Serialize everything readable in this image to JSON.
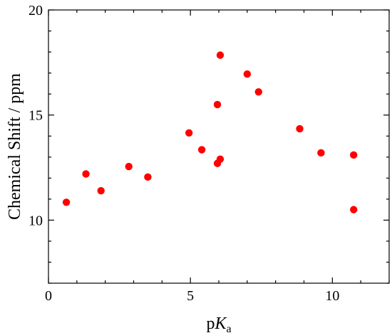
{
  "chart_data": {
    "type": "scatter",
    "title": "",
    "xlabel_prefix": "p",
    "xlabel_main": "K",
    "xlabel_sub": "a",
    "ylabel": "Chemical Shift / ppm",
    "xlim": [
      0,
      12
    ],
    "ylim": [
      7,
      20
    ],
    "x_ticks": [
      0,
      5,
      10
    ],
    "y_ticks": [
      10,
      15,
      20
    ],
    "grid": false,
    "marker_color": "#ff0000",
    "series": [
      {
        "points": [
          {
            "x": 0.63,
            "y": 10.85
          },
          {
            "x": 1.32,
            "y": 12.2
          },
          {
            "x": 1.85,
            "y": 11.4
          },
          {
            "x": 2.83,
            "y": 12.55
          },
          {
            "x": 3.5,
            "y": 12.05
          },
          {
            "x": 4.95,
            "y": 14.15
          },
          {
            "x": 5.4,
            "y": 13.35
          },
          {
            "x": 5.95,
            "y": 15.5
          },
          {
            "x": 5.95,
            "y": 12.7
          },
          {
            "x": 6.05,
            "y": 17.85
          },
          {
            "x": 6.05,
            "y": 12.9
          },
          {
            "x": 7.0,
            "y": 16.95
          },
          {
            "x": 7.4,
            "y": 16.1
          },
          {
            "x": 8.85,
            "y": 14.35
          },
          {
            "x": 9.6,
            "y": 13.2
          },
          {
            "x": 10.75,
            "y": 13.1
          },
          {
            "x": 10.75,
            "y": 10.5
          }
        ]
      }
    ]
  }
}
